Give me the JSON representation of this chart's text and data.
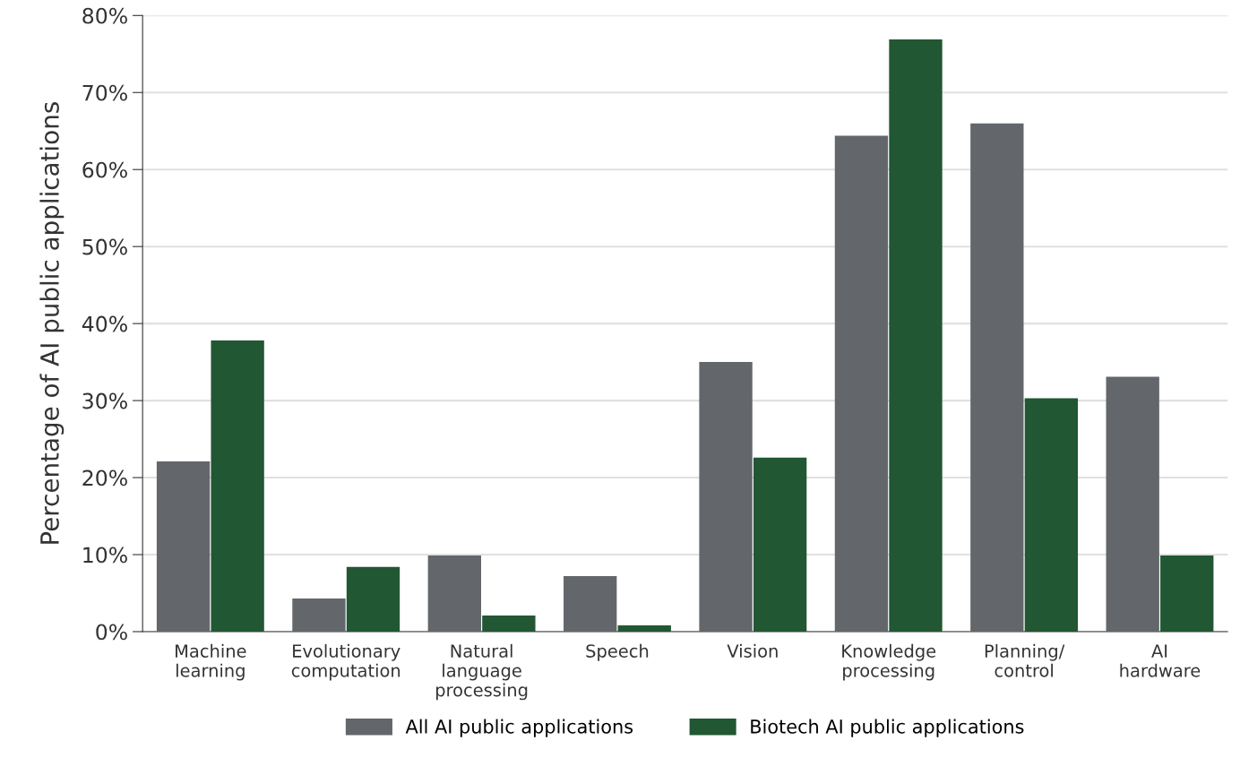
{
  "chart_data": {
    "type": "bar",
    "ylabel": "Percentage of AI public applications",
    "categories": [
      "Machine\nlearning",
      "Evolutionary\ncomputation",
      "Natural\nlanguage\nprocessing",
      "Speech",
      "Vision",
      "Knowledge\nprocessing",
      "Planning/\ncontrol",
      "AI\nhardware"
    ],
    "series": [
      {
        "name": "All AI public applications",
        "color": "#63666a",
        "values": [
          22.1,
          4.3,
          9.9,
          7.2,
          35.0,
          64.4,
          66.0,
          33.1
        ]
      },
      {
        "name": "Biotech AI public applications",
        "color": "#215733",
        "values": [
          37.8,
          8.4,
          2.1,
          0.8,
          22.6,
          76.9,
          30.3,
          9.9
        ]
      }
    ],
    "ylim": [
      0,
      80
    ],
    "yticks": [
      {
        "value": 0,
        "label": "0%"
      },
      {
        "value": 10,
        "label": "10%"
      },
      {
        "value": 20,
        "label": "20%"
      },
      {
        "value": 30,
        "label": "30%"
      },
      {
        "value": 40,
        "label": "40%"
      },
      {
        "value": 50,
        "label": "50%"
      },
      {
        "value": 60,
        "label": "60%"
      },
      {
        "value": 70,
        "label": "70%"
      },
      {
        "value": 80,
        "label": "80%"
      }
    ],
    "grid": "y",
    "legend": "bottom"
  }
}
